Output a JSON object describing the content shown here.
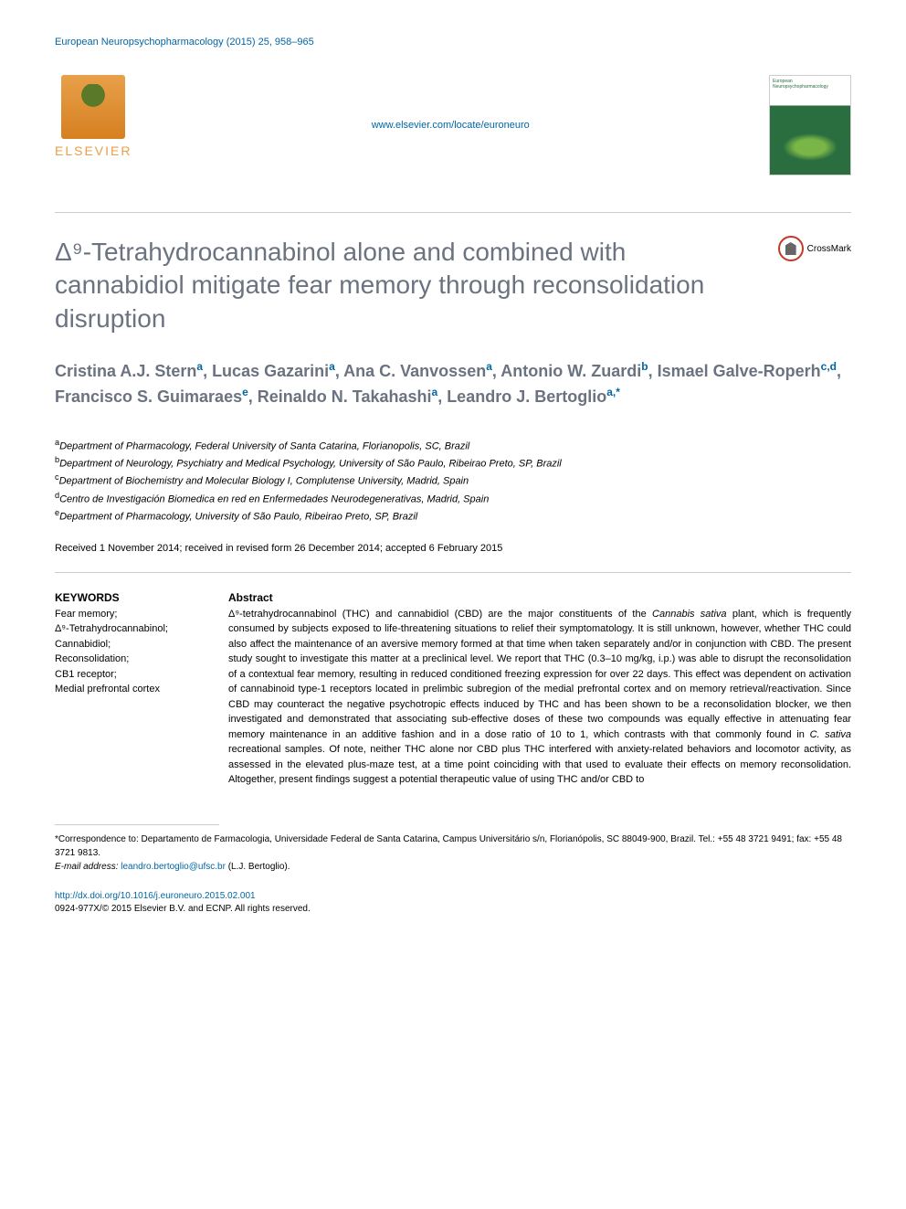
{
  "header": {
    "citation": "European Neuropsychopharmacology (2015) 25, 958–965",
    "journal_url": "www.elsevier.com/locate/euroneuro",
    "publisher_name": "ELSEVIER",
    "journal_cover_text": "European Neuropsychopharmacology"
  },
  "crossmark": "CrossMark",
  "title": "Δ⁹-Tetrahydrocannabinol alone and combined with cannabidiol mitigate fear memory through reconsolidation disruption",
  "authors": [
    {
      "name": "Cristina A.J. Stern",
      "aff": "a"
    },
    {
      "name": "Lucas Gazarini",
      "aff": "a"
    },
    {
      "name": "Ana C. Vanvossen",
      "aff": "a"
    },
    {
      "name": "Antonio W. Zuardi",
      "aff": "b"
    },
    {
      "name": "Ismael Galve-Roperh",
      "aff": "c,d"
    },
    {
      "name": "Francisco S. Guimaraes",
      "aff": "e"
    },
    {
      "name": "Reinaldo N. Takahashi",
      "aff": "a"
    },
    {
      "name": "Leandro J. Bertoglio",
      "aff": "a,*"
    }
  ],
  "affiliations": {
    "a": "Department of Pharmacology, Federal University of Santa Catarina, Florianopolis, SC, Brazil",
    "b": "Department of Neurology, Psychiatry and Medical Psychology, University of São Paulo, Ribeirao Preto, SP, Brazil",
    "c": "Department of Biochemistry and Molecular Biology I, Complutense University, Madrid, Spain",
    "d": "Centro de Investigación Biomedica en red en Enfermedades Neurodegenerativas, Madrid, Spain",
    "e": "Department of Pharmacology, University of São Paulo, Ribeirao Preto, SP, Brazil"
  },
  "history": "Received 1 November 2014; received in revised form 26 December 2014; accepted 6 February 2015",
  "keywords_heading": "KEYWORDS",
  "keywords": "Fear memory;\nΔ⁹-Tetrahydrocannabinol;\nCannabidiol;\nReconsolidation;\nCB1 receptor;\nMedial prefrontal cortex",
  "abstract_heading": "Abstract",
  "abstract": "Δ⁹-tetrahydrocannabinol (THC) and cannabidiol (CBD) are the major constituents of the Cannabis sativa plant, which is frequently consumed by subjects exposed to life-threatening situations to relief their symptomatology. It is still unknown, however, whether THC could also affect the maintenance of an aversive memory formed at that time when taken separately and/or in conjunction with CBD. The present study sought to investigate this matter at a preclinical level. We report that THC (0.3–10 mg/kg, i.p.) was able to disrupt the reconsolidation of a contextual fear memory, resulting in reduced conditioned freezing expression for over 22 days. This effect was dependent on activation of cannabinoid type-1 receptors located in prelimbic subregion of the medial prefrontal cortex and on memory retrieval/reactivation. Since CBD may counteract the negative psychotropic effects induced by THC and has been shown to be a reconsolidation blocker, we then investigated and demonstrated that associating sub-effective doses of these two compounds was equally effective in attenuating fear memory maintenance in an additive fashion and in a dose ratio of 10 to 1, which contrasts with that commonly found in C. sativa recreational samples. Of note, neither THC alone nor CBD plus THC interfered with anxiety-related behaviors and locomotor activity, as assessed in the elevated plus-maze test, at a time point coinciding with that used to evaluate their effects on memory reconsolidation. Altogether, present findings suggest a potential therapeutic value of using THC and/or CBD to",
  "footer": {
    "correspondence": "*Correspondence to: Departamento de Farmacologia, Universidade Federal de Santa Catarina, Campus Universitário s/n, Florianópolis, SC 88049-900, Brazil. Tel.: +55 48 3721 9491; fax: +55 48 3721 9813.",
    "email_label": "E-mail address:",
    "email": "leandro.bertoglio@ufsc.br",
    "email_person": "(L.J. Bertoglio).",
    "doi_url": "http://dx.doi.org/10.1016/j.euroneuro.2015.02.001",
    "copyright": "0924-977X/© 2015 Elsevier B.V. and ECNP. All rights reserved."
  },
  "colors": {
    "link": "#0066a4",
    "title_gray": "#6b7280",
    "elsevier_orange": "#e8a04a",
    "cover_green": "#2a6e3f",
    "crossmark_red": "#c0392b",
    "divider": "#cccccc"
  },
  "typography": {
    "title_fontsize": 28,
    "authors_fontsize": 18,
    "body_fontsize": 11,
    "footer_fontsize": 10
  }
}
